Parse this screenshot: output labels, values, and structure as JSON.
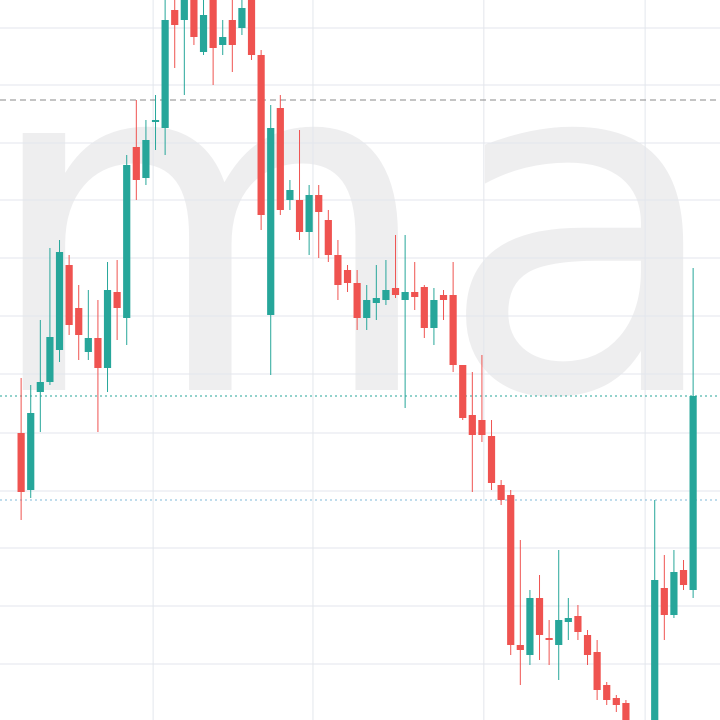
{
  "chart_data": {
    "type": "candlestick",
    "watermark": "ma",
    "up_color": "#26a69a",
    "down_color": "#ef5350",
    "grid": true,
    "xlim": [
      -2.2,
      72.8
    ],
    "ylim": [
      0,
      720
    ],
    "ygrid": [
      692,
      635,
      577,
      520,
      462,
      404,
      346,
      287,
      229,
      172,
      114,
      56
    ],
    "xgrid": [
      13.75,
      30.4,
      48.2,
      65
    ],
    "price_lines": [
      {
        "value": 620,
        "color": "#888888",
        "dash": "6 4"
      },
      {
        "value": 324,
        "color": "#26a69a",
        "dash": "2 3"
      },
      {
        "value": 220,
        "color": "#7fb8d8",
        "dash": "2 3"
      }
    ],
    "x": [
      0,
      1,
      2,
      3,
      4,
      5,
      6,
      7,
      8,
      9,
      10,
      11,
      12,
      13,
      14,
      15,
      16,
      17,
      18,
      19,
      20,
      21,
      22,
      23,
      24,
      25,
      26,
      27,
      28,
      29,
      30,
      31,
      32,
      33,
      34,
      35,
      36,
      37,
      38,
      39,
      40,
      41,
      42,
      43,
      44,
      45,
      46,
      47,
      48,
      49,
      50,
      51,
      52,
      53,
      54,
      55,
      56,
      57,
      58,
      59,
      60,
      61,
      62,
      63,
      66,
      67,
      68,
      69,
      70
    ],
    "open": [
      287,
      230,
      328,
      338,
      370,
      455,
      412,
      368,
      382,
      352,
      428,
      402,
      573,
      542,
      598,
      592,
      710,
      700,
      720,
      668,
      720,
      675,
      700,
      692,
      720,
      665,
      405,
      612,
      520,
      520,
      488,
      525,
      500,
      465,
      450,
      437,
      402,
      417,
      420,
      432,
      420,
      428,
      433,
      392,
      425,
      425,
      355,
      305,
      300,
      284,
      235,
      225,
      75,
      65,
      122,
      82,
      75,
      98,
      104,
      85,
      68,
      35,
      22,
      17,
      0,
      132,
      105,
      150,
      130
    ],
    "high": [
      342,
      335,
      400,
      472,
      480,
      465,
      435,
      430,
      420,
      458,
      460,
      565,
      620,
      600,
      625,
      720,
      720,
      720,
      720,
      720,
      720,
      700,
      720,
      720,
      720,
      670,
      615,
      625,
      540,
      590,
      535,
      535,
      510,
      480,
      455,
      450,
      435,
      455,
      460,
      485,
      485,
      458,
      435,
      432,
      430,
      458,
      355,
      348,
      365,
      300,
      240,
      230,
      180,
      130,
      145,
      100,
      170,
      122,
      115,
      90,
      80,
      38,
      25,
      20,
      220,
      165,
      170,
      160,
      452
    ],
    "low": [
      200,
      222,
      288,
      335,
      358,
      385,
      360,
      360,
      288,
      328,
      380,
      375,
      520,
      535,
      570,
      565,
      652,
      625,
      675,
      665,
      635,
      665,
      648,
      685,
      660,
      490,
      345,
      505,
      510,
      480,
      465,
      462,
      458,
      420,
      428,
      390,
      390,
      400,
      415,
      422,
      312,
      410,
      382,
      375,
      400,
      348,
      300,
      228,
      278,
      230,
      215,
      65,
      35,
      55,
      60,
      55,
      40,
      80,
      80,
      55,
      20,
      15,
      8,
      0,
      0,
      80,
      102,
      130,
      122
    ],
    "close": [
      228,
      307,
      338,
      383,
      468,
      395,
      385,
      382,
      352,
      430,
      412,
      555,
      540,
      580,
      600,
      700,
      695,
      720,
      683,
      705,
      672,
      683,
      675,
      712,
      665,
      505,
      592,
      510,
      530,
      488,
      525,
      508,
      465,
      435,
      437,
      402,
      420,
      422,
      430,
      425,
      428,
      423,
      392,
      420,
      420,
      355,
      302,
      285,
      285,
      237,
      220,
      75,
      70,
      122,
      85,
      80,
      100,
      102,
      88,
      65,
      30,
      20,
      15,
      0,
      140,
      105,
      148,
      135,
      324
    ]
  }
}
